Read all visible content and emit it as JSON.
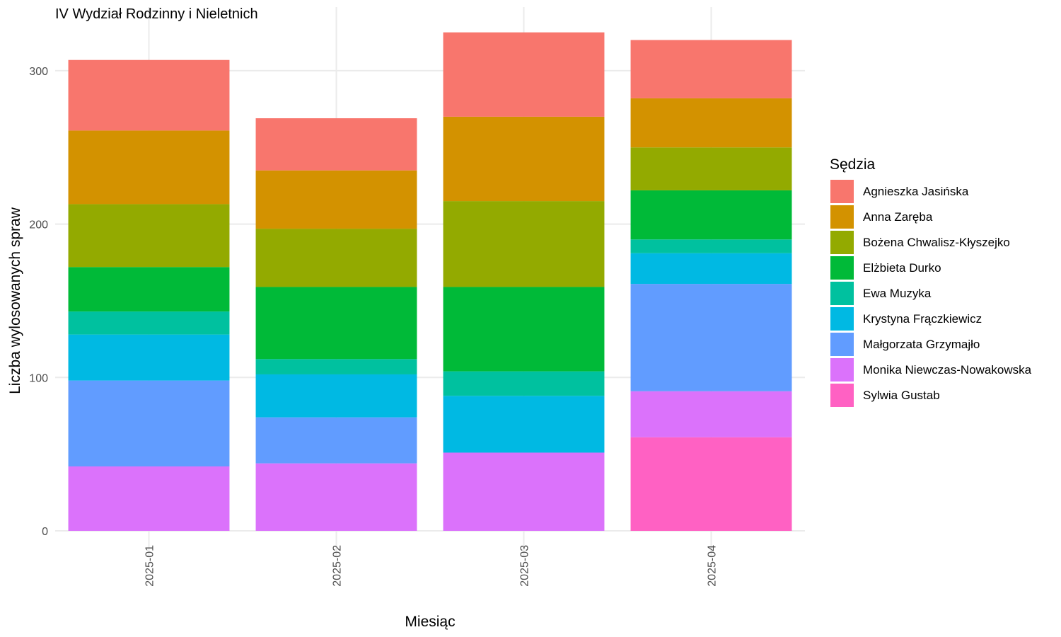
{
  "chart_data": {
    "type": "bar",
    "stacked": true,
    "title": "IV Wydział Rodzinny i Nieletnich",
    "xlabel": "Miesiąc",
    "ylabel": "Liczba wylosowanych spraw",
    "ylim": [
      0,
      330
    ],
    "yticks": [
      0,
      100,
      200,
      300
    ],
    "grid": true,
    "legend_title": "Sędzia",
    "legend_position": "right",
    "categories": [
      "2025-01",
      "2025-02",
      "2025-03",
      "2025-04"
    ],
    "series": [
      {
        "name": "Agnieszka Jasińska",
        "color": "#F8766D",
        "values": [
          46,
          34,
          55,
          38
        ]
      },
      {
        "name": "Anna Zaręba",
        "color": "#D39200",
        "values": [
          48,
          38,
          55,
          32
        ]
      },
      {
        "name": "Bożena Chwalisz-Kłyszejko",
        "color": "#93AA00",
        "values": [
          41,
          38,
          56,
          28
        ]
      },
      {
        "name": "Elżbieta Durko",
        "color": "#00BA38",
        "values": [
          29,
          47,
          55,
          32
        ]
      },
      {
        "name": "Ewa Muzyka",
        "color": "#00C19F",
        "values": [
          15,
          10,
          16,
          9
        ]
      },
      {
        "name": "Krystyna Frączkiewicz",
        "color": "#00B9E3",
        "values": [
          30,
          28,
          37,
          20
        ]
      },
      {
        "name": "Małgorzata Grzymajło",
        "color": "#619CFF",
        "values": [
          56,
          30,
          0,
          70
        ]
      },
      {
        "name": "Monika Niewczas-Nowakowska",
        "color": "#DB72FB",
        "values": [
          42,
          44,
          51,
          30
        ]
      },
      {
        "name": "Sylwia Gustab",
        "color": "#FF61C3",
        "values": [
          0,
          0,
          0,
          61
        ]
      }
    ]
  }
}
